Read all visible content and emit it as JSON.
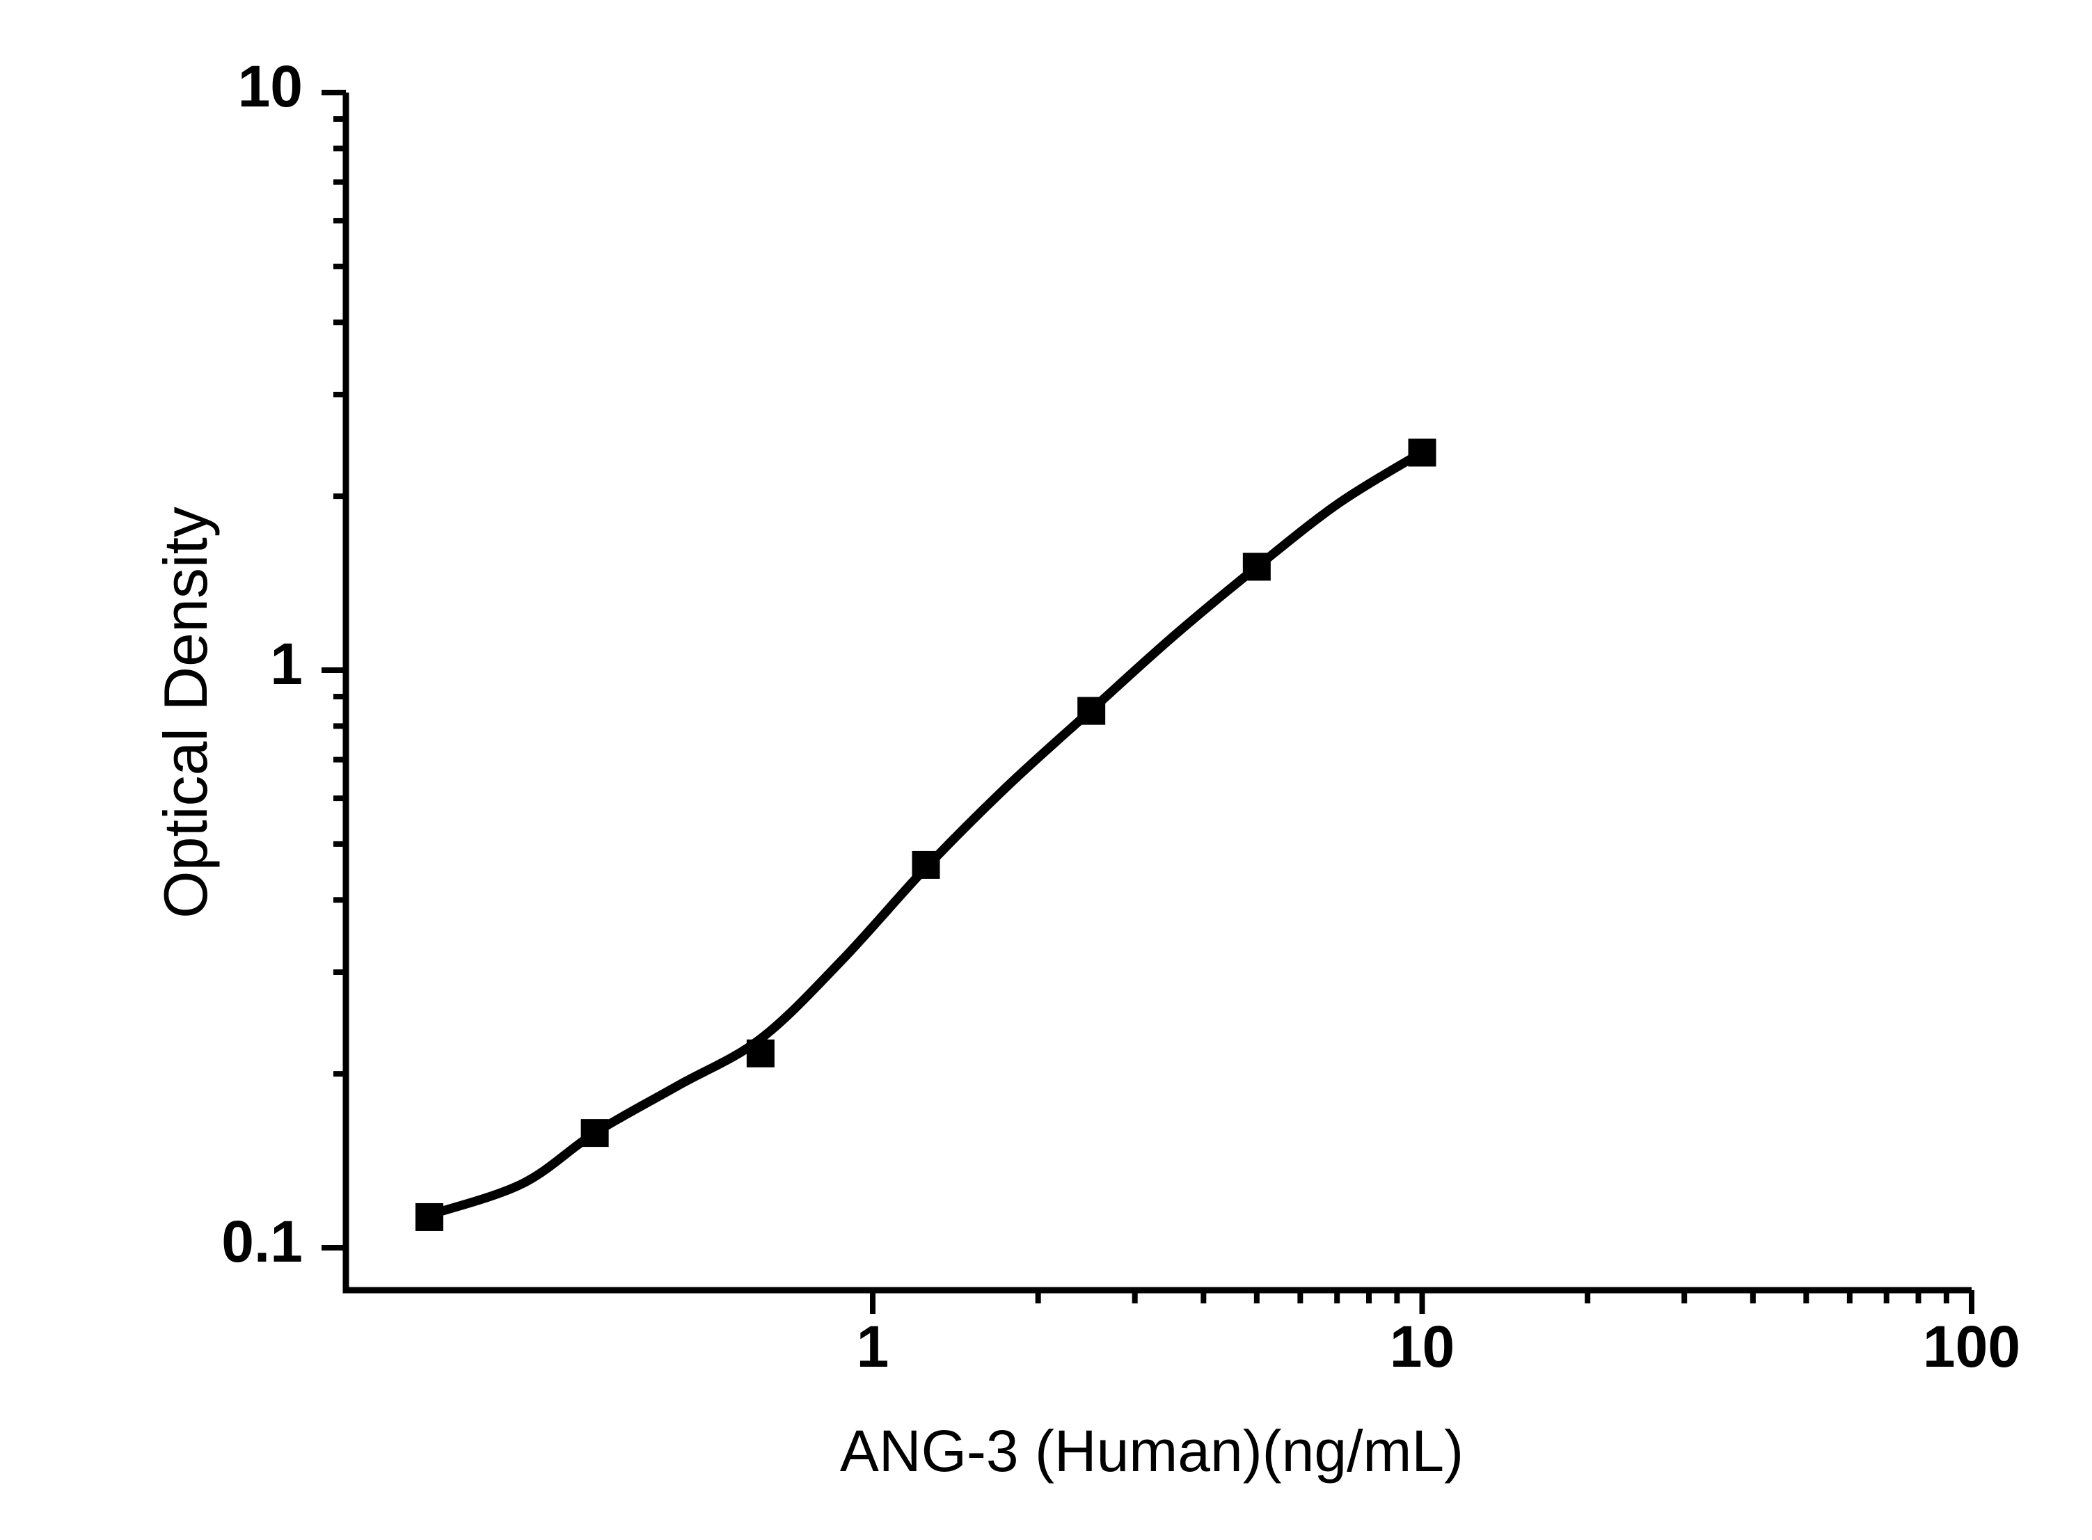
{
  "chart_data": {
    "type": "scatter",
    "title": "",
    "xlabel": "ANG-3 (Human)(ng/mL)",
    "ylabel": "Optical Density",
    "x_scale": "log",
    "y_scale": "log",
    "xlim": [
      0.11,
      100
    ],
    "ylim": [
      0.085,
      10
    ],
    "grid": false,
    "legend": null,
    "colors": {
      "ink": "#000000",
      "background": "#ffffff"
    },
    "x_ticks": {
      "major": [
        1,
        10,
        100
      ],
      "major_labels": [
        "1",
        "10",
        "100"
      ],
      "minor": [
        2,
        3,
        4,
        5,
        6,
        7,
        8,
        9,
        20,
        30,
        40,
        50,
        60,
        70,
        80,
        90
      ]
    },
    "y_ticks": {
      "major": [
        10,
        1,
        0.1
      ],
      "major_labels": [
        "10",
        "1",
        "0.1"
      ],
      "minor": [
        9,
        8,
        7,
        6,
        5,
        4,
        3,
        2,
        0.9,
        0.8,
        0.7,
        0.6,
        0.5,
        0.4,
        0.3,
        0.2
      ]
    },
    "series": [
      {
        "name": "standard_points",
        "type": "scatter",
        "marker": "filled-square",
        "x": [
          0.156,
          0.312,
          0.625,
          1.25,
          2.5,
          5,
          10
        ],
        "y": [
          0.113,
          0.158,
          0.217,
          0.46,
          0.85,
          1.51,
          2.38
        ]
      },
      {
        "name": "fit_curve",
        "type": "line",
        "x": [
          0.156,
          0.23,
          0.312,
          0.443,
          0.625,
          0.88,
          1.25,
          1.76,
          2.5,
          3.52,
          5,
          7.06,
          10
        ],
        "y": [
          0.114,
          0.129,
          0.158,
          0.191,
          0.23,
          0.315,
          0.455,
          0.63,
          0.853,
          1.143,
          1.508,
          1.947,
          2.384
        ]
      }
    ]
  }
}
